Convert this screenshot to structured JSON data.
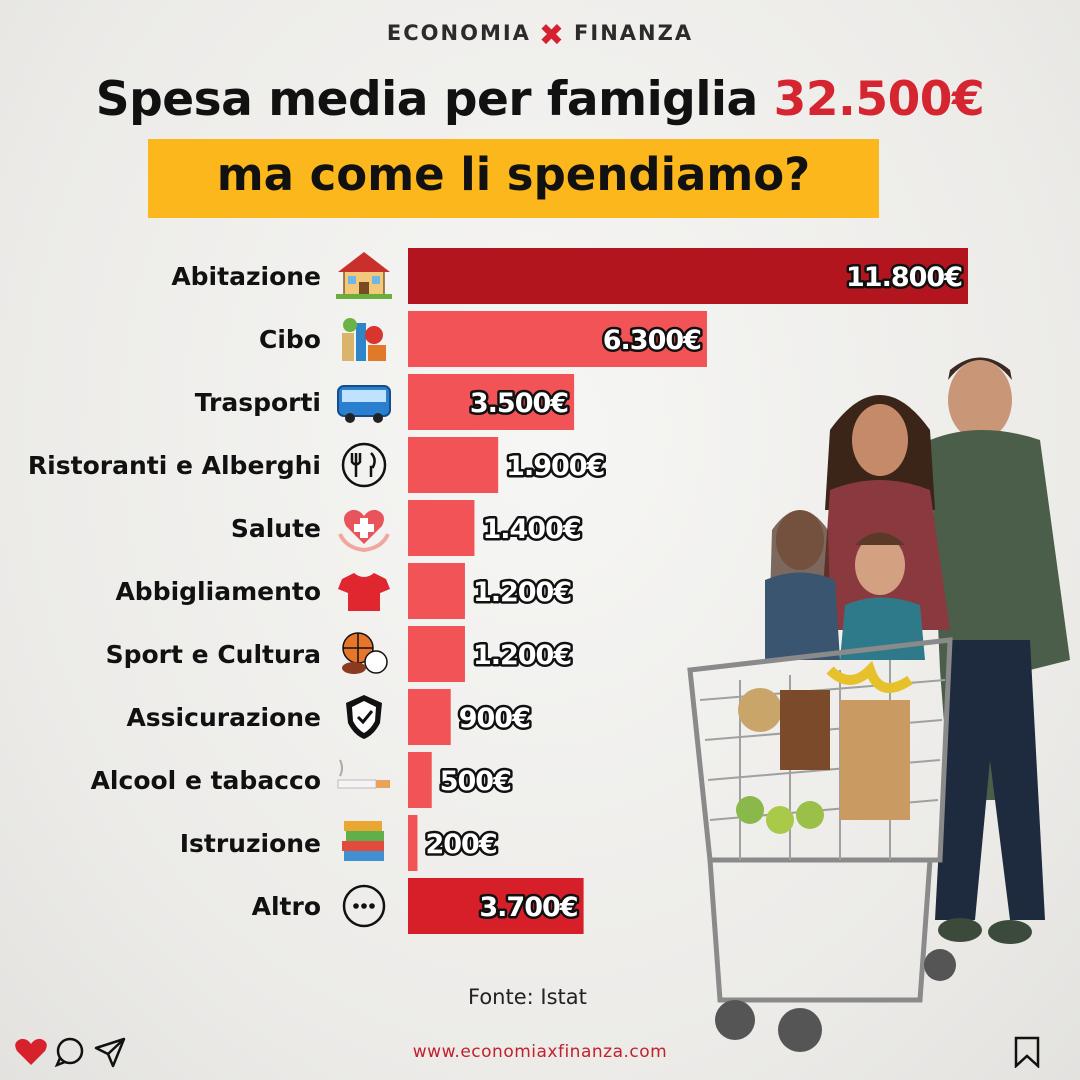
{
  "brand": {
    "left": "ECONOMIA",
    "right": "FINANZA"
  },
  "headline": {
    "prefix": "Spesa media per famiglia",
    "amount": "32.500€"
  },
  "subtitle": "ma come li spendiamo?",
  "chart_data": {
    "type": "bar",
    "orientation": "horizontal",
    "categories": [
      "Abitazione",
      "Cibo",
      "Trasporti",
      "Ristoranti e Alberghi",
      "Salute",
      "Abbigliamento",
      "Sport e Cultura",
      "Assicurazione",
      "Alcool e tabacco",
      "Istruzione",
      "Altro"
    ],
    "values": [
      11800,
      6300,
      3500,
      1900,
      1400,
      1200,
      1200,
      900,
      500,
      200,
      3700
    ],
    "value_labels": [
      "11.800€",
      "6.300€",
      "3.500€",
      "1.900€",
      "1.400€",
      "1.200€",
      "1.200€",
      "900€",
      "500€",
      "200€",
      "3.700€"
    ],
    "icons": [
      "house-icon",
      "groceries-icon",
      "bus-icon",
      "restaurant-icon",
      "health-heart-icon",
      "tshirt-icon",
      "sports-balls-icon",
      "shield-check-icon",
      "cigarette-icon",
      "books-icon",
      "more-icon"
    ],
    "colors": [
      "#b3151f",
      "#f25356",
      "#f25356",
      "#f25356",
      "#f25356",
      "#f25356",
      "#f25356",
      "#f25356",
      "#f25356",
      "#f25356",
      "#d71f2a"
    ],
    "xlim": [
      0,
      11800
    ],
    "grid": false,
    "legend": "none"
  },
  "source": "Fonte: Istat",
  "footer": {
    "url": "www.economiaxfinanza.com"
  },
  "social_icons": [
    "heart-icon",
    "comment-icon",
    "share-icon",
    "bookmark-icon"
  ],
  "colors": {
    "accent": "#d42530",
    "highlight": "#fbb71b"
  }
}
